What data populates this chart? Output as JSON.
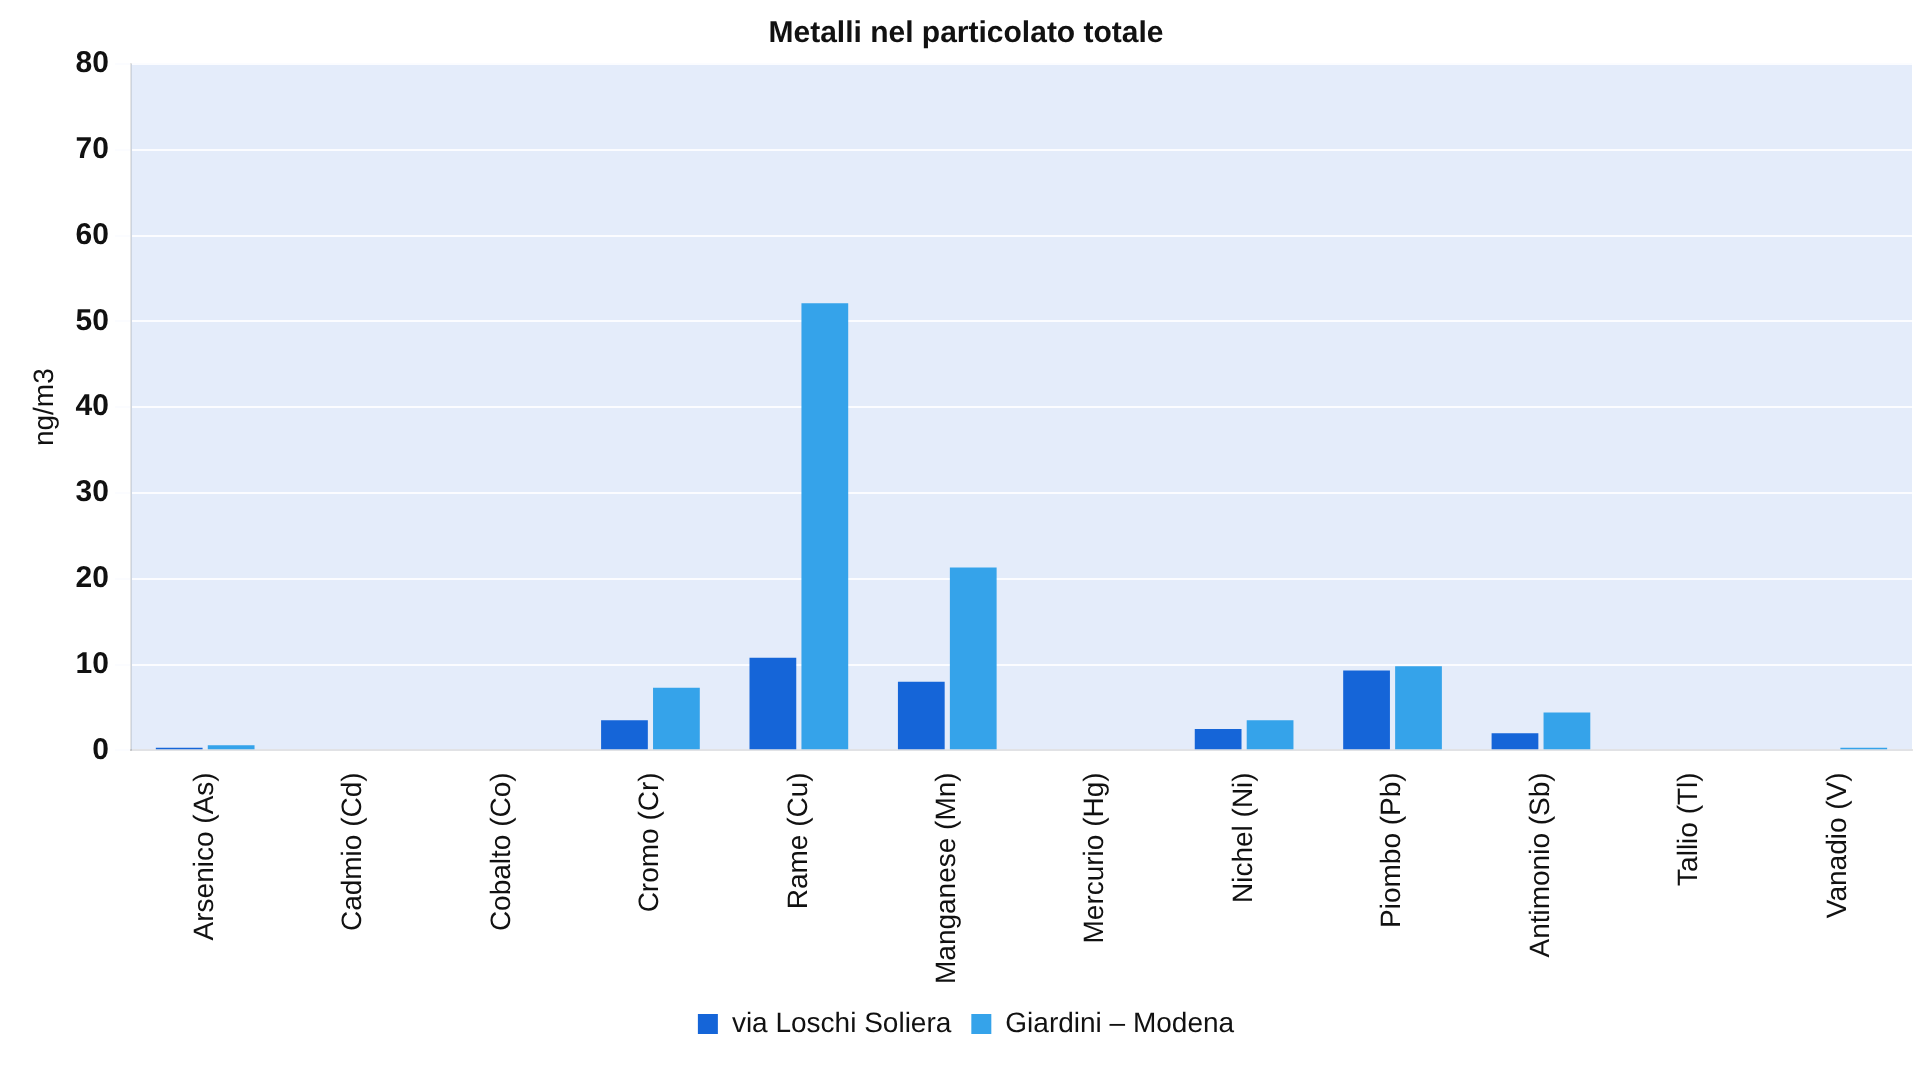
{
  "chart_data": {
    "type": "bar",
    "title": "Metalli nel particolato totale",
    "ylabel": "ng/m3",
    "categories": [
      "Arsenico (As)",
      "Cadmio (Cd)",
      "Cobalto (Co)",
      "Cromo (Cr)",
      "Rame (Cu)",
      "Manganese (Mn)",
      "Mercurio (Hg)",
      "Nichel (Ni)",
      "Piombo (Pb)",
      "Antimonio (Sb)",
      "Tallio (Tl)",
      "Vanadio (V)"
    ],
    "series": [
      {
        "name": "via Loschi Soliera",
        "color": "#1565d8",
        "values": [
          0.3,
          0,
          0,
          3.5,
          10.8,
          8.0,
          null,
          2.5,
          9.3,
          2.0,
          0,
          0
        ]
      },
      {
        "name": "Giardini – Modena",
        "color": "#35a3ea",
        "values": [
          0.6,
          null,
          0,
          7.3,
          52.1,
          21.3,
          null,
          3.5,
          9.8,
          4.4,
          0,
          0.3
        ]
      }
    ],
    "ylim": [
      0,
      80
    ],
    "yticks": [
      0,
      10,
      20,
      30,
      40,
      50,
      60,
      70,
      80
    ],
    "grid": "y",
    "legend": "bottom"
  }
}
